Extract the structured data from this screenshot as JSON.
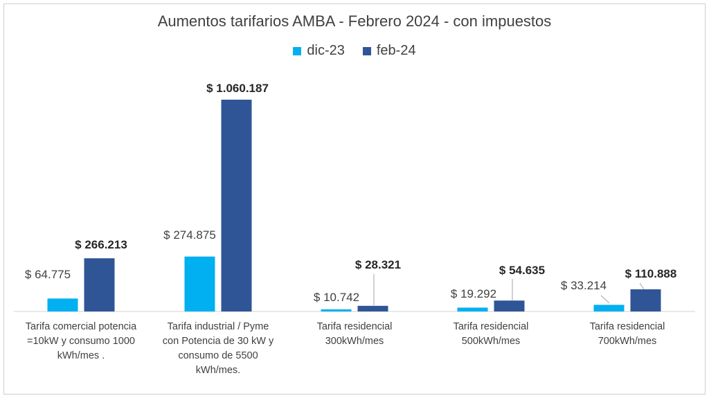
{
  "chart_data": {
    "type": "bar",
    "title": "Aumentos tarifarios AMBA - Febrero 2024 - con impuestos",
    "legend_position": "top",
    "grid": false,
    "categories": [
      "Tarifa comercial potencia =10kW y consumo 1000 kWh/mes .",
      "Tarifa industrial / Pyme con Potencia de 30 kW y consumo de 5500 kWh/mes.",
      "Tarifa residencial 300kWh/mes",
      "Tarifa residencial 500kWh/mes",
      "Tarifa residencial 700kWh/mes"
    ],
    "category_lines": [
      [
        "Tarifa comercial potencia",
        "=10kW y consumo 1000",
        "kWh/mes ."
      ],
      [
        "Tarifa industrial / Pyme",
        "con Potencia de 30 kW y",
        "consumo de 5500",
        "kWh/mes."
      ],
      [
        "Tarifa residencial",
        "300kWh/mes"
      ],
      [
        "Tarifa residencial",
        "500kWh/mes"
      ],
      [
        "Tarifa residencial",
        "700kWh/mes"
      ]
    ],
    "series": [
      {
        "name": "dic-23",
        "color": "#00B0F0",
        "values": [
          64775,
          274875,
          10742,
          19292,
          33214
        ],
        "labels": [
          "$ 64.775",
          "$ 274.875",
          "$ 10.742",
          "$ 19.292",
          "$ 33.214"
        ]
      },
      {
        "name": "feb-24",
        "color": "#2F5597",
        "values": [
          266213,
          1060187,
          28321,
          54635,
          110888
        ],
        "labels": [
          "$ 266.213",
          "$ 1.060.187",
          "$ 28.321",
          "$ 54.635",
          "$ 110.888"
        ]
      }
    ],
    "ylim": [
      0,
      1100000
    ]
  }
}
